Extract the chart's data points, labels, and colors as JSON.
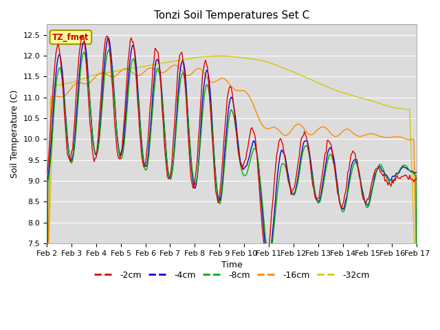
{
  "title": "Tonzi Soil Temperatures Set C",
  "xlabel": "Time",
  "ylabel": "Soil Temperature (C)",
  "ylim": [
    7.5,
    12.75
  ],
  "annotation": "TZ_fmet",
  "legend_labels": [
    "-2cm",
    "-4cm",
    "-8cm",
    "-16cm",
    "-32cm"
  ],
  "legend_colors": [
    "#dd0000",
    "#0000cc",
    "#00aa00",
    "#ff8800",
    "#cccc00"
  ],
  "x_tick_labels": [
    "Feb 2",
    "Feb 3",
    "Feb 4",
    "Feb 5",
    "Feb 6",
    "Feb 7",
    "Feb 8",
    "Feb 9",
    "Feb 10",
    "Feb 11",
    "Feb 12",
    "Feb 13",
    "Feb 14",
    "Feb 15",
    "Feb 16",
    "Feb 17"
  ],
  "background_color": "#dcdcdc",
  "title_fontsize": 11,
  "tick_fontsize": 8
}
